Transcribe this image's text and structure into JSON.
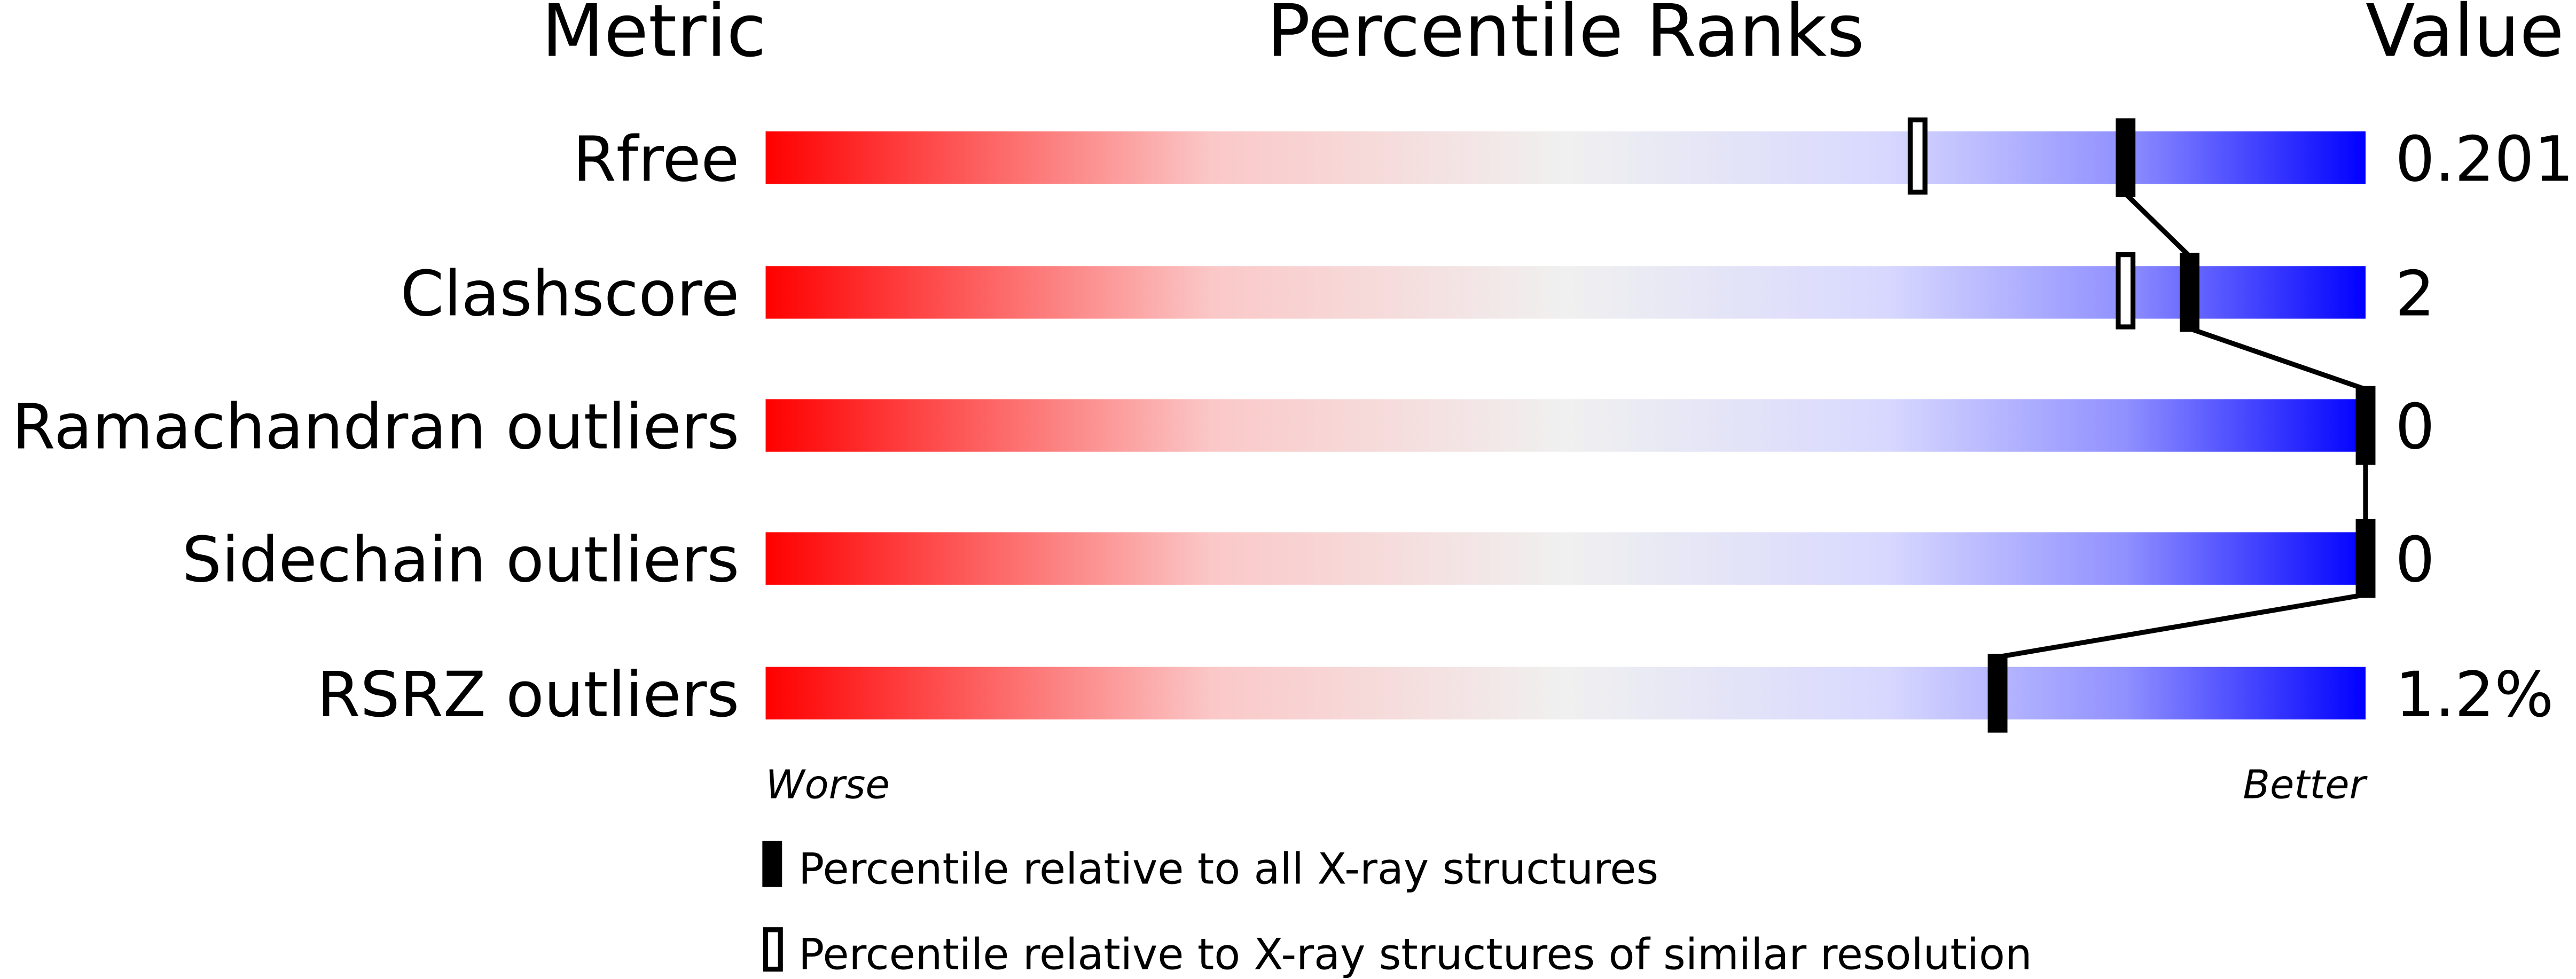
{
  "chart_data": {
    "type": "percentile-slider",
    "headers": {
      "metric": "Metric",
      "ranks": "Percentile Ranks",
      "value": "Value"
    },
    "xlim": [
      0,
      100
    ],
    "axis_labels": {
      "left": "Worse",
      "right": "Better"
    },
    "colors": {
      "worse": "#ff0000",
      "middle": "#f0f0f0",
      "light_blue": "#d8d8ff",
      "better": "#0000ff",
      "marker": "#000000"
    },
    "metrics": [
      {
        "name": "Rfree",
        "value": "0.201",
        "percentile_all": 85,
        "percentile_similar": 72
      },
      {
        "name": "Clashscore",
        "value": "2",
        "percentile_all": 89,
        "percentile_similar": 85
      },
      {
        "name": "Ramachandran outliers",
        "value": "0",
        "percentile_all": 100,
        "percentile_similar": null
      },
      {
        "name": "Sidechain outliers",
        "value": "0",
        "percentile_all": 100,
        "percentile_similar": null
      },
      {
        "name": "RSRZ outliers",
        "value": "1.2%",
        "percentile_all": 77,
        "percentile_similar": null
      }
    ],
    "legend": [
      {
        "marker": "filled",
        "label": "Percentile relative to all X-ray structures"
      },
      {
        "marker": "open",
        "label": "Percentile relative to X-ray structures of similar resolution"
      }
    ]
  }
}
